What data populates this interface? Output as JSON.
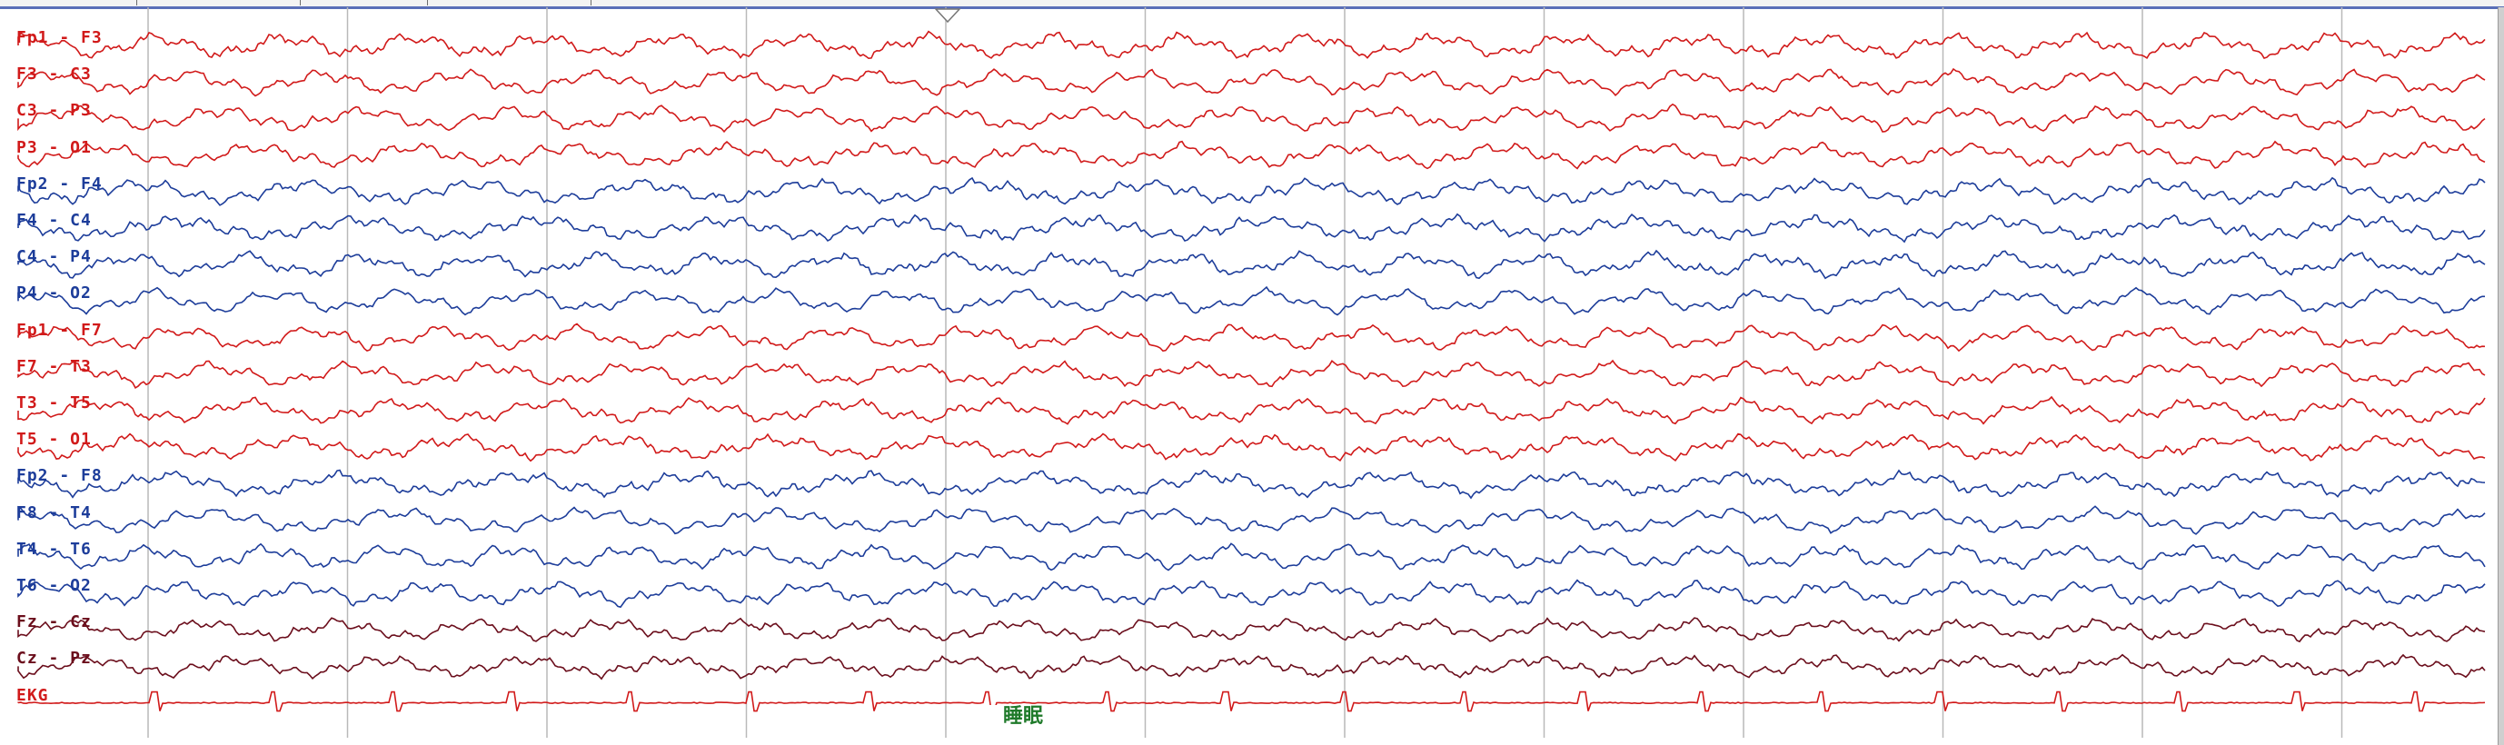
{
  "app": {
    "window_title": ""
  },
  "colors": {
    "left_hemisphere": "#d11a1a",
    "right_hemisphere": "#1d3d9a",
    "midline": "#6b0e1c",
    "ekg": "#d11a1a",
    "gridline": "#b9b9b9",
    "event_text": "#1f7a2a"
  },
  "channels": [
    {
      "label": "Fp1 - F3",
      "group": "left"
    },
    {
      "label": "F3 - C3",
      "group": "left"
    },
    {
      "label": "C3 - P3",
      "group": "left"
    },
    {
      "label": "P3 - O1",
      "group": "left"
    },
    {
      "label": "Fp2 - F4",
      "group": "right"
    },
    {
      "label": "F4 - C4",
      "group": "right"
    },
    {
      "label": "C4 - P4",
      "group": "right"
    },
    {
      "label": "P4 - O2",
      "group": "right"
    },
    {
      "label": "Fp1 - F7",
      "group": "left"
    },
    {
      "label": "F7 - T3",
      "group": "left"
    },
    {
      "label": "T3 - T5",
      "group": "left"
    },
    {
      "label": "T5 - O1",
      "group": "left"
    },
    {
      "label": "Fp2 - F8",
      "group": "right"
    },
    {
      "label": "F8 - T4",
      "group": "right"
    },
    {
      "label": "T4 - T6",
      "group": "right"
    },
    {
      "label": "T6 - O2",
      "group": "right"
    },
    {
      "label": "Fz - Cz",
      "group": "midline"
    },
    {
      "label": "Cz - Pz",
      "group": "midline"
    },
    {
      "label": "EKG",
      "group": "ekg"
    }
  ],
  "event_marker": {
    "label": "睡眠"
  },
  "time_axis": {
    "seconds_shown": 12
  }
}
